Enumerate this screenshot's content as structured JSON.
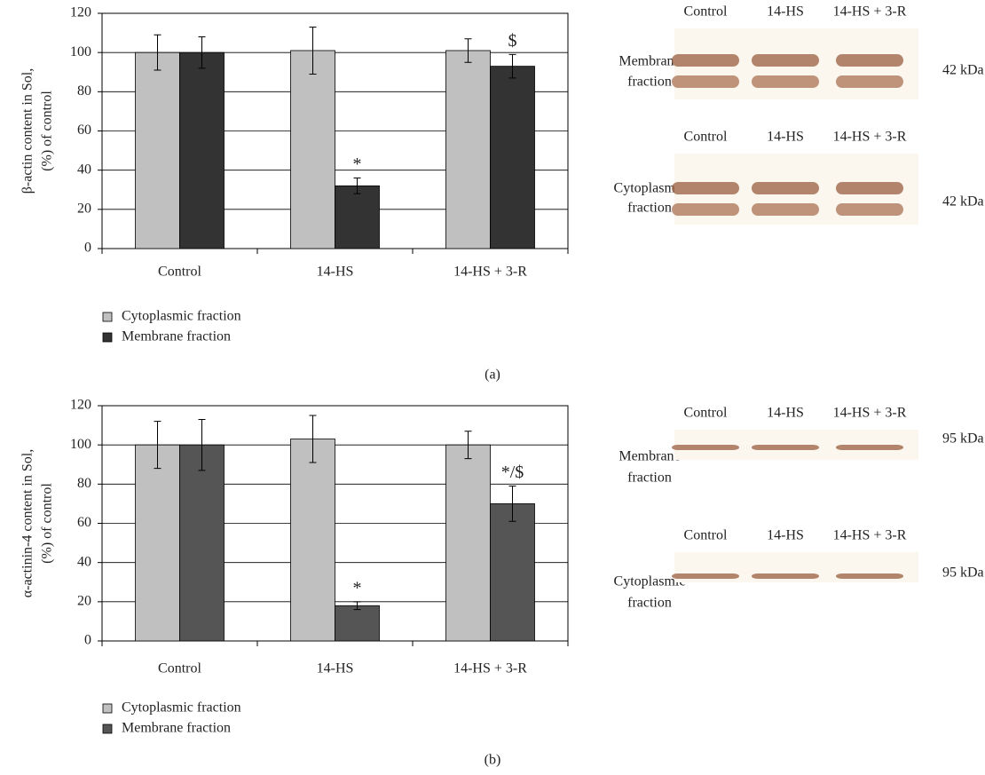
{
  "chart_data": [
    {
      "type": "bar",
      "panel_label": "(a)",
      "y_label": [
        "β-actin content in Sol,",
        "(%) of control"
      ],
      "categories": [
        "Control",
        "14-HS",
        "14-HS + 3-R"
      ],
      "series": [
        {
          "name": "Cytoplasmic fraction",
          "color": "#c0c0c0",
          "values": [
            100,
            101,
            101
          ],
          "errors": [
            9,
            12,
            6
          ]
        },
        {
          "name": "Membrane fraction",
          "color": "#333333",
          "values": [
            100,
            32,
            93
          ],
          "errors": [
            8,
            4,
            6
          ],
          "annotations": [
            null,
            "*",
            "$"
          ]
        }
      ],
      "ylim": [
        0,
        120
      ],
      "yticks": [
        0,
        20,
        40,
        60,
        80,
        100,
        120
      ],
      "grid": true,
      "blot": {
        "rows": [
          {
            "lanes": [
              "Control",
              "14-HS",
              "14-HS + 3-R"
            ],
            "label": [
              "Membrane",
              "fraction"
            ],
            "size": "42 kDa"
          },
          {
            "lanes": [
              "Control",
              "14-HS",
              "14-HS + 3-R"
            ],
            "label": [
              "Cytoplasmic",
              "fraction"
            ],
            "size": "42 kDa"
          }
        ]
      }
    },
    {
      "type": "bar",
      "panel_label": "(b)",
      "y_label": [
        "α-actinin-4 content in Sol,",
        "(%) of control"
      ],
      "categories": [
        "Control",
        "14-HS",
        "14-HS + 3-R"
      ],
      "series": [
        {
          "name": "Cytoplasmic fraction",
          "color": "#c0c0c0",
          "values": [
            100,
            103,
            100
          ],
          "errors": [
            12,
            12,
            7
          ]
        },
        {
          "name": "Membrane fraction",
          "color": "#555555",
          "values": [
            100,
            18,
            70
          ],
          "errors": [
            13,
            2,
            9
          ],
          "annotations": [
            null,
            "*",
            "*/$"
          ]
        }
      ],
      "ylim": [
        0,
        120
      ],
      "yticks": [
        0,
        20,
        40,
        60,
        80,
        100,
        120
      ],
      "grid": true,
      "blot": {
        "rows": [
          {
            "lanes": [
              "Control",
              "14-HS",
              "14-HS + 3-R"
            ],
            "label": [
              "Membrane",
              "fraction"
            ],
            "size": "95 kDa"
          },
          {
            "lanes": [
              "Control",
              "14-HS",
              "14-HS + 3-R"
            ],
            "label": [
              "Cytoplasmic",
              "fraction"
            ],
            "size": "95 kDa"
          }
        ]
      }
    }
  ]
}
